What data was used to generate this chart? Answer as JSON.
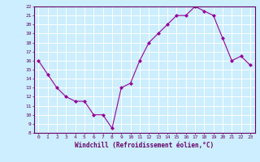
{
  "x": [
    0,
    1,
    2,
    3,
    4,
    5,
    6,
    7,
    8,
    9,
    10,
    11,
    12,
    13,
    14,
    15,
    16,
    17,
    18,
    19,
    20,
    21,
    22,
    23
  ],
  "y": [
    16.0,
    14.5,
    13.0,
    12.0,
    11.5,
    11.5,
    10.0,
    10.0,
    8.5,
    13.0,
    13.5,
    16.0,
    18.0,
    19.0,
    20.0,
    21.0,
    21.0,
    22.0,
    21.5,
    21.0,
    18.5,
    16.0,
    16.5,
    15.5
  ],
  "line_color": "#990099",
  "marker_color": "#990099",
  "bg_color": "#cceeff",
  "grid_color": "#ffffff",
  "xlabel": "Windchill (Refroidissement éolien,°C)",
  "ylim": [
    8,
    22
  ],
  "xlim_min": -0.5,
  "xlim_max": 23.5,
  "yticks": [
    8,
    9,
    10,
    11,
    12,
    13,
    14,
    15,
    16,
    17,
    18,
    19,
    20,
    21,
    22
  ],
  "xticks": [
    0,
    1,
    2,
    3,
    4,
    5,
    6,
    7,
    8,
    9,
    10,
    11,
    12,
    13,
    14,
    15,
    16,
    17,
    18,
    19,
    20,
    21,
    22,
    23
  ],
  "axis_color": "#660066",
  "tick_label_color": "#660066",
  "xlabel_color": "#660066"
}
